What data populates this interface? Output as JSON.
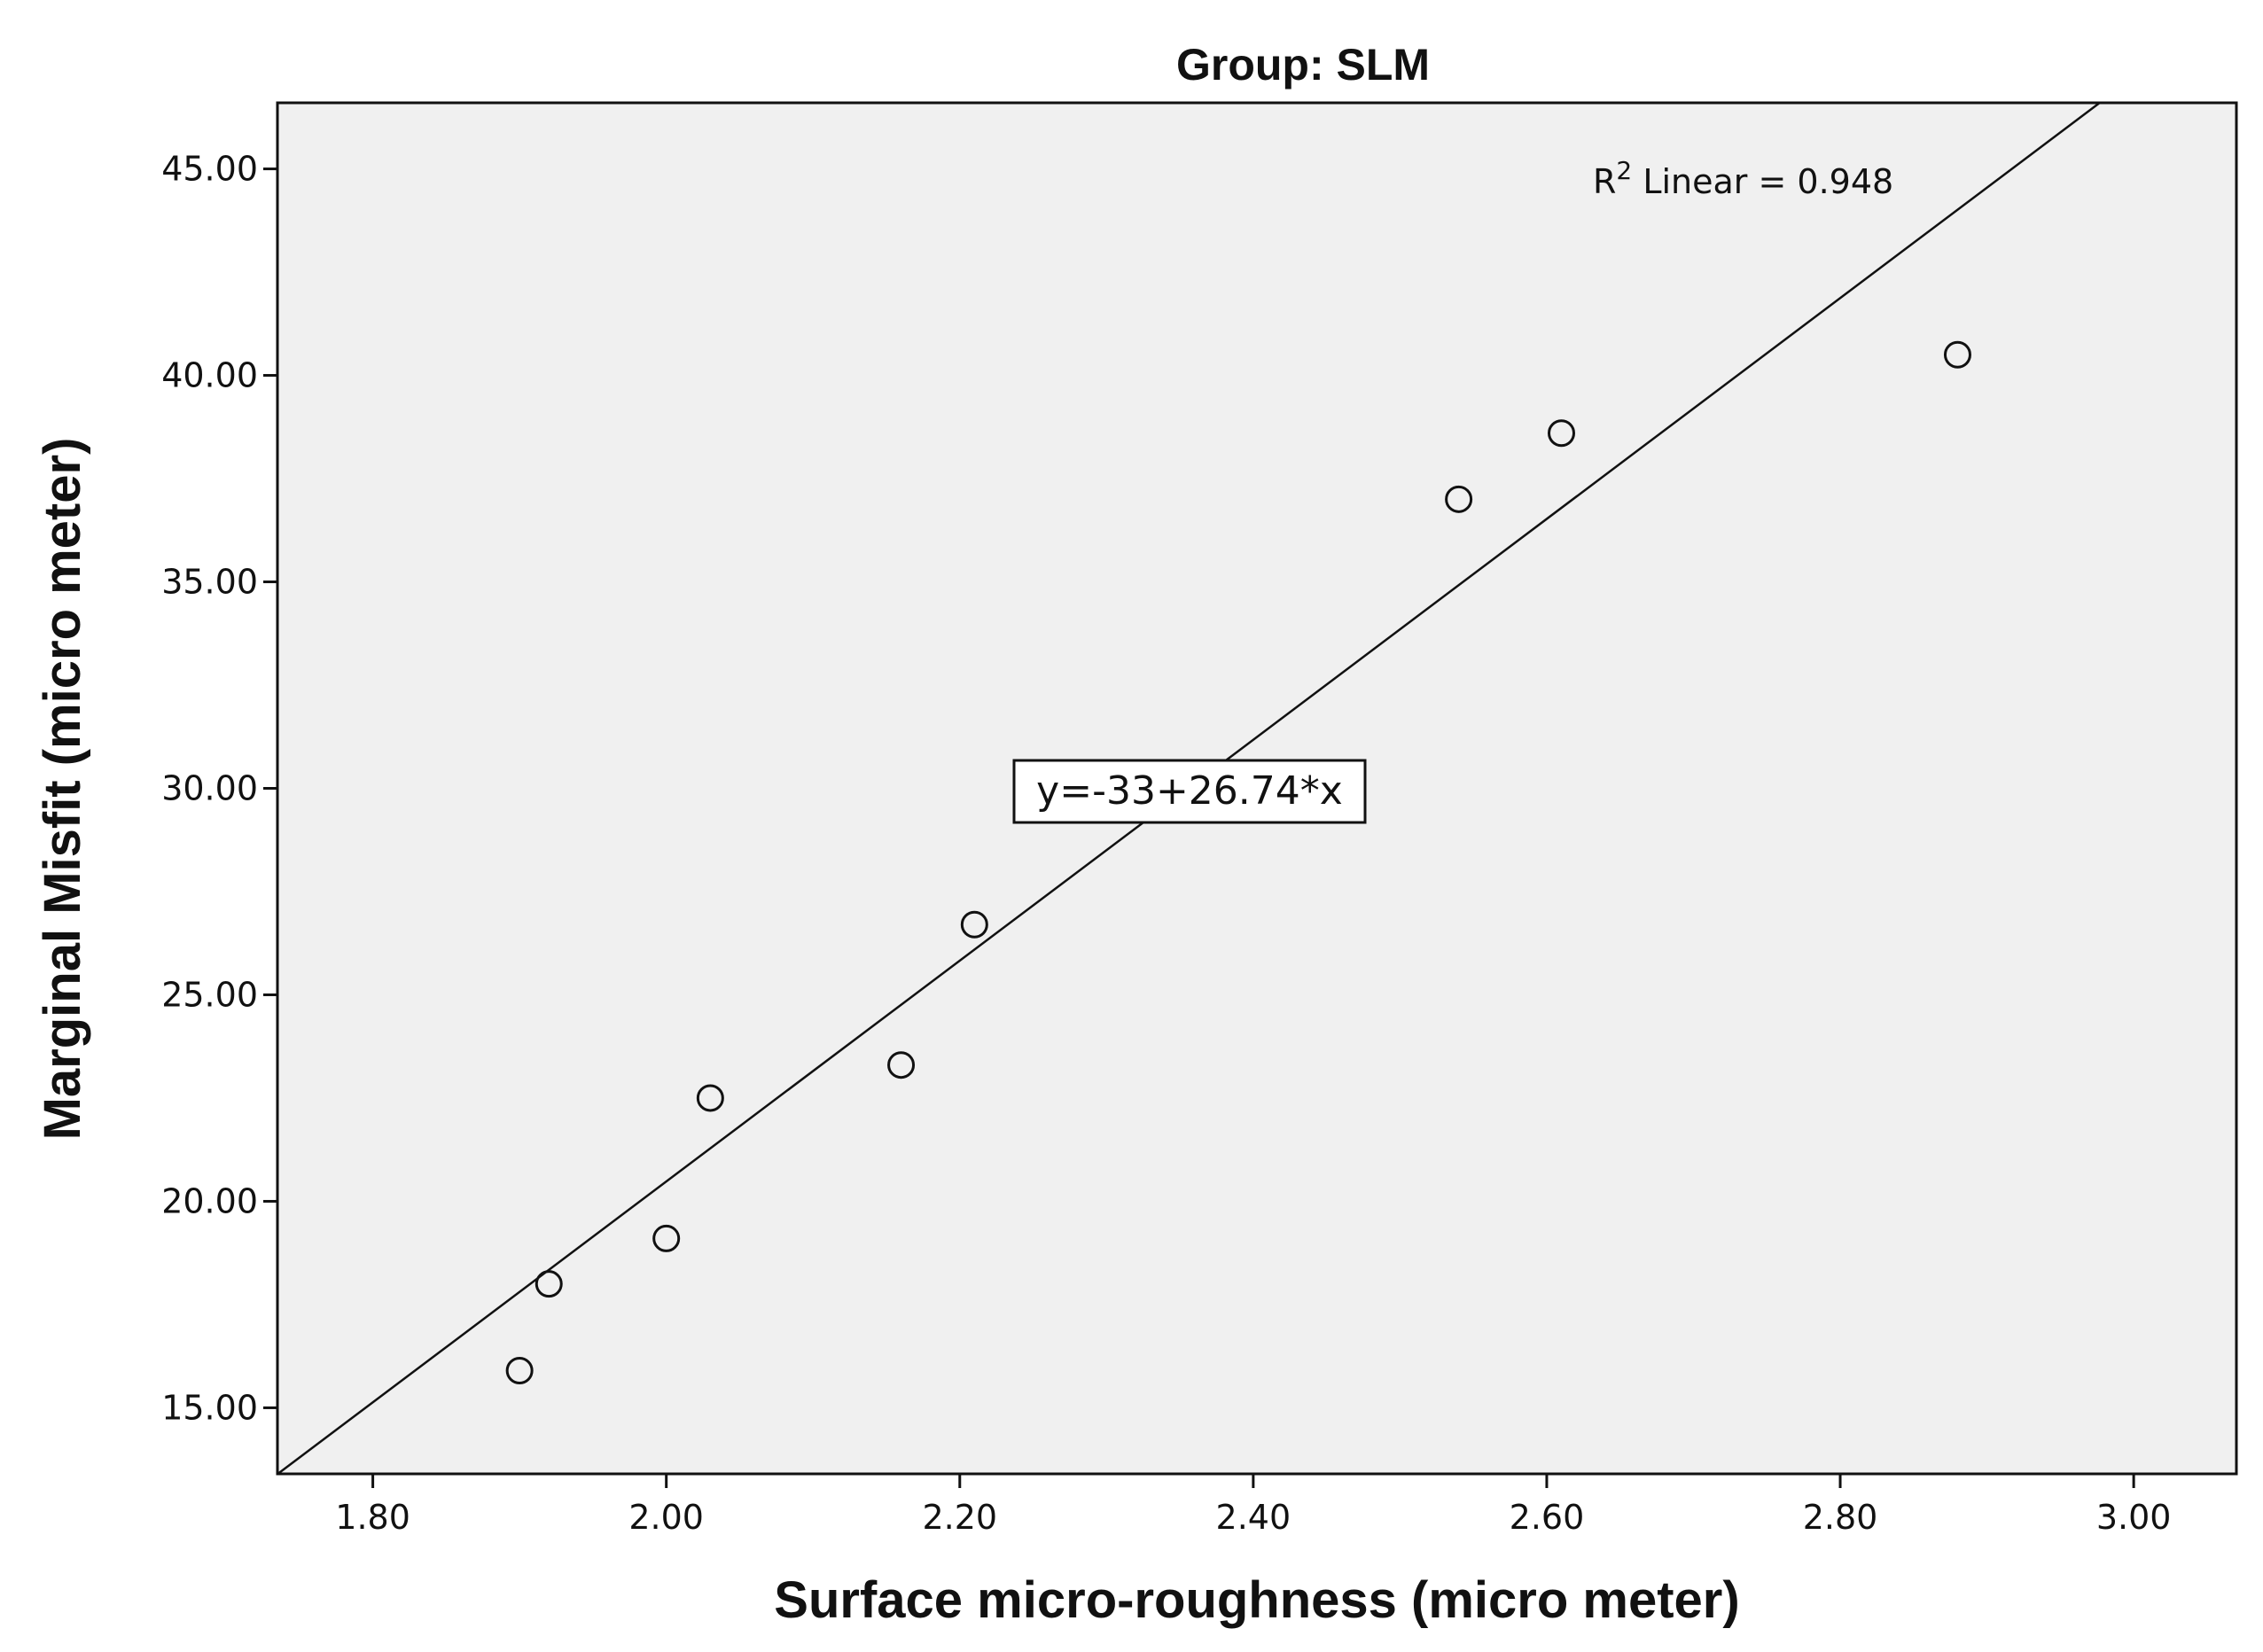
{
  "chart_data": {
    "type": "scatter",
    "title": "Group: SLM",
    "xlabel": "Surface micro-roughness (micro meter)",
    "ylabel": "Marginal Misfit (micro meter)",
    "xlim": [
      1.735,
      3.07
    ],
    "ylim": [
      13.4,
      46.6
    ],
    "x_ticks": [
      "1.80",
      "2.00",
      "2.20",
      "2.40",
      "2.60",
      "2.80",
      "3.00"
    ],
    "y_ticks": [
      "15.00",
      "20.00",
      "25.00",
      "30.00",
      "35.00",
      "40.00",
      "45.00"
    ],
    "grid": false,
    "background": "#f0f0f0",
    "marker": "open-circle",
    "points": [
      {
        "x": 1.9,
        "y": 15.9
      },
      {
        "x": 1.92,
        "y": 18.0
      },
      {
        "x": 2.0,
        "y": 19.1
      },
      {
        "x": 2.03,
        "y": 22.5
      },
      {
        "x": 2.16,
        "y": 23.3
      },
      {
        "x": 2.21,
        "y": 26.7
      },
      {
        "x": 2.54,
        "y": 37.0
      },
      {
        "x": 2.61,
        "y": 38.6
      },
      {
        "x": 2.88,
        "y": 40.5
      }
    ],
    "fit_line": {
      "intercept": -33,
      "slope": 26.74
    },
    "annotations": {
      "r2_prefix": "R",
      "r2_superscript": "2",
      "r2_suffix": " Linear = 0.948",
      "equation": "y=-33+26.74*x"
    }
  }
}
